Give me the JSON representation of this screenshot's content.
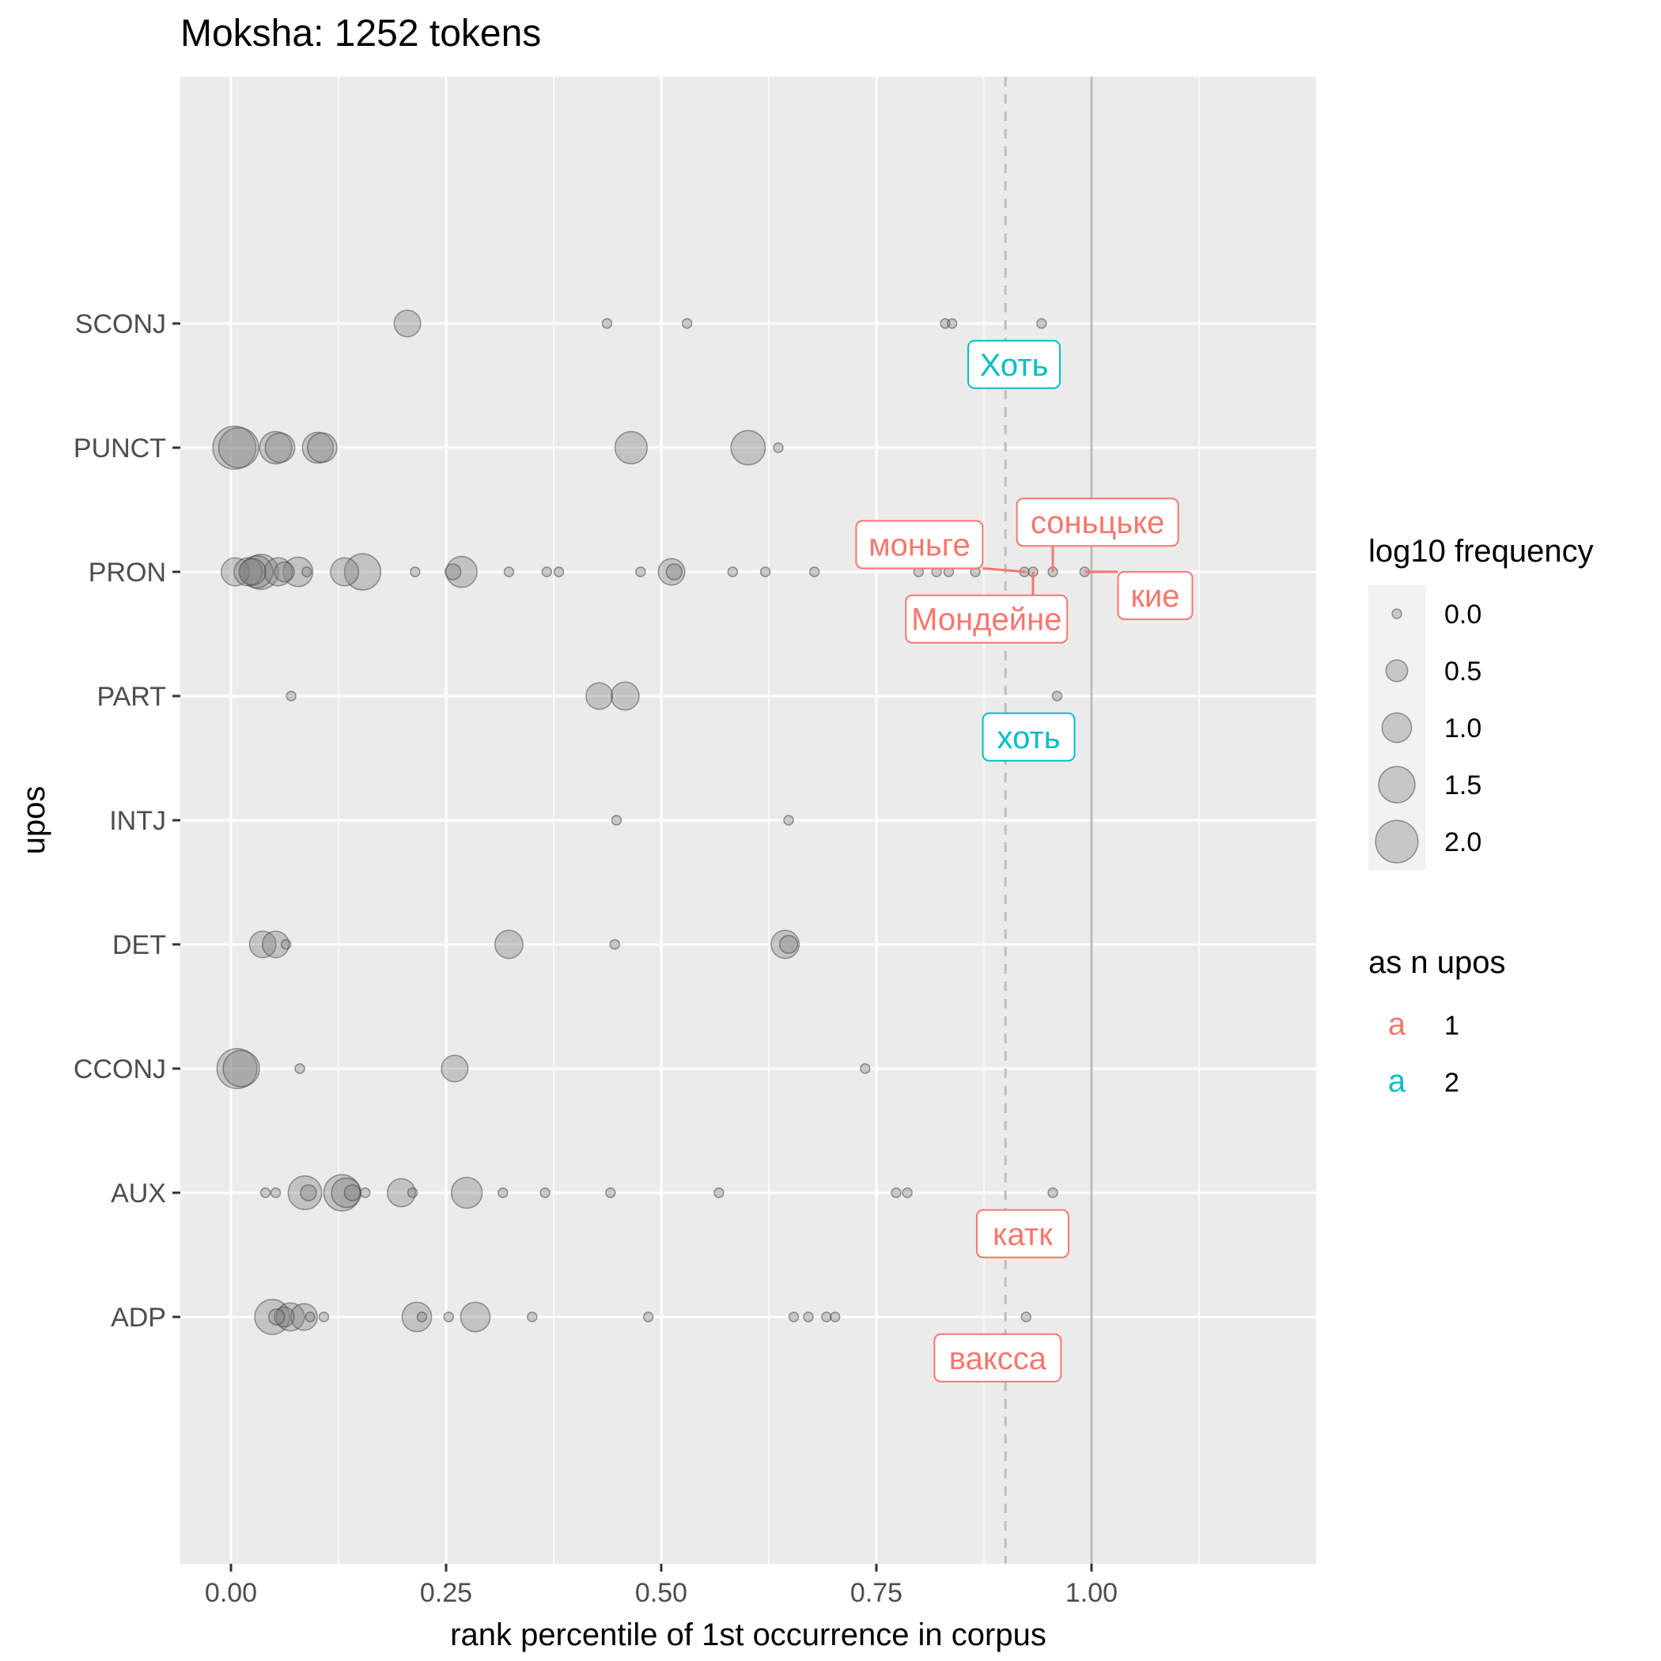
{
  "chart_data": {
    "type": "scatter",
    "title": "Moksha: 1252 tokens",
    "xlabel": "rank percentile of 1st occurrence in corpus",
    "ylabel": "upos",
    "xlim": [
      -0.06,
      1.26
    ],
    "x_ticks": [
      0.0,
      0.25,
      0.5,
      0.75,
      1.0
    ],
    "x_tick_labels": [
      "0.00",
      "0.25",
      "0.50",
      "0.75",
      "1.00"
    ],
    "x_minor_ticks": [
      0.125,
      0.375,
      0.625,
      0.875,
      1.125
    ],
    "categories": [
      "ADP",
      "AUX",
      "CCONJ",
      "DET",
      "INTJ",
      "PART",
      "PRON",
      "PUNCT",
      "SCONJ"
    ],
    "vlines": [
      {
        "x": 0.9,
        "style": "dashed"
      },
      {
        "x": 1.0,
        "style": "solid"
      }
    ],
    "points": [
      {
        "cat": "SCONJ",
        "x": 0.205,
        "f": 0.8
      },
      {
        "cat": "SCONJ",
        "x": 0.437,
        "f": 0
      },
      {
        "cat": "SCONJ",
        "x": 0.53,
        "f": 0
      },
      {
        "cat": "SCONJ",
        "x": 0.83,
        "f": 0
      },
      {
        "cat": "SCONJ",
        "x": 0.838,
        "f": 0
      },
      {
        "cat": "SCONJ",
        "x": 0.942,
        "f": 0
      },
      {
        "cat": "PUNCT",
        "x": 0.004,
        "f": 2.05
      },
      {
        "cat": "PUNCT",
        "x": 0.009,
        "f": 1.8
      },
      {
        "cat": "PUNCT",
        "x": 0.052,
        "f": 1.2
      },
      {
        "cat": "PUNCT",
        "x": 0.057,
        "f": 1.0
      },
      {
        "cat": "PUNCT",
        "x": 0.101,
        "f": 1.1
      },
      {
        "cat": "PUNCT",
        "x": 0.106,
        "f": 1.0
      },
      {
        "cat": "PUNCT",
        "x": 0.465,
        "f": 1.2
      },
      {
        "cat": "PUNCT",
        "x": 0.601,
        "f": 1.35
      },
      {
        "cat": "PUNCT",
        "x": 0.636,
        "f": 0
      },
      {
        "cat": "PRON",
        "x": 0.005,
        "f": 0.9
      },
      {
        "cat": "PRON",
        "x": 0.02,
        "f": 0.9
      },
      {
        "cat": "PRON",
        "x": 0.025,
        "f": 0.8
      },
      {
        "cat": "PRON",
        "x": 0.03,
        "f": 1.2
      },
      {
        "cat": "PRON",
        "x": 0.035,
        "f": 1.4
      },
      {
        "cat": "PRON",
        "x": 0.055,
        "f": 0.9
      },
      {
        "cat": "PRON",
        "x": 0.062,
        "f": 0.4
      },
      {
        "cat": "PRON",
        "x": 0.078,
        "f": 1.0
      },
      {
        "cat": "PRON",
        "x": 0.088,
        "f": 0
      },
      {
        "cat": "PRON",
        "x": 0.132,
        "f": 0.9
      },
      {
        "cat": "PRON",
        "x": 0.153,
        "f": 1.5
      },
      {
        "cat": "PRON",
        "x": 0.214,
        "f": 0
      },
      {
        "cat": "PRON",
        "x": 0.258,
        "f": 0.2
      },
      {
        "cat": "PRON",
        "x": 0.268,
        "f": 1.1
      },
      {
        "cat": "PRON",
        "x": 0.323,
        "f": 0
      },
      {
        "cat": "PRON",
        "x": 0.367,
        "f": 0
      },
      {
        "cat": "PRON",
        "x": 0.381,
        "f": 0
      },
      {
        "cat": "PRON",
        "x": 0.476,
        "f": 0
      },
      {
        "cat": "PRON",
        "x": 0.512,
        "f": 0.8
      },
      {
        "cat": "PRON",
        "x": 0.515,
        "f": 0.2
      },
      {
        "cat": "PRON",
        "x": 0.583,
        "f": 0
      },
      {
        "cat": "PRON",
        "x": 0.621,
        "f": 0
      },
      {
        "cat": "PRON",
        "x": 0.678,
        "f": 0
      },
      {
        "cat": "PRON",
        "x": 0.799,
        "f": 0
      },
      {
        "cat": "PRON",
        "x": 0.82,
        "f": 0
      },
      {
        "cat": "PRON",
        "x": 0.834,
        "f": 0
      },
      {
        "cat": "PRON",
        "x": 0.865,
        "f": 0
      },
      {
        "cat": "PRON",
        "x": 0.922,
        "f": 0
      },
      {
        "cat": "PRON",
        "x": 0.932,
        "f": 0
      },
      {
        "cat": "PRON",
        "x": 0.955,
        "f": 0
      },
      {
        "cat": "PRON",
        "x": 0.992,
        "f": 0
      },
      {
        "cat": "PART",
        "x": 0.07,
        "f": 0
      },
      {
        "cat": "PART",
        "x": 0.428,
        "f": 0.8
      },
      {
        "cat": "PART",
        "x": 0.458,
        "f": 0.9
      },
      {
        "cat": "PART",
        "x": 0.96,
        "f": 0
      },
      {
        "cat": "INTJ",
        "x": 0.448,
        "f": 0
      },
      {
        "cat": "INTJ",
        "x": 0.648,
        "f": 0
      },
      {
        "cat": "DET",
        "x": 0.037,
        "f": 0.8
      },
      {
        "cat": "DET",
        "x": 0.052,
        "f": 0.8
      },
      {
        "cat": "DET",
        "x": 0.064,
        "f": 0
      },
      {
        "cat": "DET",
        "x": 0.323,
        "f": 0.9
      },
      {
        "cat": "DET",
        "x": 0.446,
        "f": 0
      },
      {
        "cat": "DET",
        "x": 0.644,
        "f": 0.9
      },
      {
        "cat": "DET",
        "x": 0.648,
        "f": 0.3
      },
      {
        "cat": "CCONJ",
        "x": 0.007,
        "f": 1.8
      },
      {
        "cat": "CCONJ",
        "x": 0.012,
        "f": 1.5
      },
      {
        "cat": "CCONJ",
        "x": 0.08,
        "f": 0
      },
      {
        "cat": "CCONJ",
        "x": 0.26,
        "f": 0.8
      },
      {
        "cat": "CCONJ",
        "x": 0.737,
        "f": 0
      },
      {
        "cat": "AUX",
        "x": 0.04,
        "f": 0
      },
      {
        "cat": "AUX",
        "x": 0.052,
        "f": 0
      },
      {
        "cat": "AUX",
        "x": 0.086,
        "f": 1.3
      },
      {
        "cat": "AUX",
        "x": 0.09,
        "f": 0.2
      },
      {
        "cat": "AUX",
        "x": 0.129,
        "f": 1.5
      },
      {
        "cat": "AUX",
        "x": 0.134,
        "f": 1.0
      },
      {
        "cat": "AUX",
        "x": 0.141,
        "f": 0.2
      },
      {
        "cat": "AUX",
        "x": 0.156,
        "f": 0
      },
      {
        "cat": "AUX",
        "x": 0.198,
        "f": 0.9
      },
      {
        "cat": "AUX",
        "x": 0.211,
        "f": 0
      },
      {
        "cat": "AUX",
        "x": 0.274,
        "f": 1.1
      },
      {
        "cat": "AUX",
        "x": 0.316,
        "f": 0
      },
      {
        "cat": "AUX",
        "x": 0.365,
        "f": 0
      },
      {
        "cat": "AUX",
        "x": 0.441,
        "f": 0
      },
      {
        "cat": "AUX",
        "x": 0.567,
        "f": 0
      },
      {
        "cat": "AUX",
        "x": 0.773,
        "f": 0
      },
      {
        "cat": "AUX",
        "x": 0.786,
        "f": 0
      },
      {
        "cat": "AUX",
        "x": 0.955,
        "f": 0
      },
      {
        "cat": "ADP",
        "x": 0.048,
        "f": 1.4
      },
      {
        "cat": "ADP",
        "x": 0.053,
        "f": 0.2
      },
      {
        "cat": "ADP",
        "x": 0.062,
        "f": 0.4
      },
      {
        "cat": "ADP",
        "x": 0.069,
        "f": 0.9
      },
      {
        "cat": "ADP",
        "x": 0.085,
        "f": 0.8
      },
      {
        "cat": "ADP",
        "x": 0.092,
        "f": 0
      },
      {
        "cat": "ADP",
        "x": 0.108,
        "f": 0
      },
      {
        "cat": "ADP",
        "x": 0.216,
        "f": 1.0
      },
      {
        "cat": "ADP",
        "x": 0.222,
        "f": 0
      },
      {
        "cat": "ADP",
        "x": 0.253,
        "f": 0
      },
      {
        "cat": "ADP",
        "x": 0.284,
        "f": 1.0
      },
      {
        "cat": "ADP",
        "x": 0.35,
        "f": 0
      },
      {
        "cat": "ADP",
        "x": 0.485,
        "f": 0
      },
      {
        "cat": "ADP",
        "x": 0.654,
        "f": 0
      },
      {
        "cat": "ADP",
        "x": 0.671,
        "f": 0
      },
      {
        "cat": "ADP",
        "x": 0.692,
        "f": 0
      },
      {
        "cat": "ADP",
        "x": 0.702,
        "f": 0
      },
      {
        "cat": "ADP",
        "x": 0.924,
        "f": 0
      }
    ],
    "labels": [
      {
        "text": "Хоть",
        "group": 2,
        "cat": "SCONJ",
        "x": 0.91,
        "offset": -0.33
      },
      {
        "text": "моньге",
        "group": 1,
        "cat": "PRON",
        "x": 0.8,
        "offset": 0.22,
        "target_x": 0.924
      },
      {
        "text": "соньцьке",
        "group": 1,
        "cat": "PRON",
        "x": 1.007,
        "offset": 0.4,
        "target_x": 0.955
      },
      {
        "text": "кие",
        "group": 1,
        "cat": "PRON",
        "x": 1.074,
        "offset": -0.19,
        "target_x": 0.992
      },
      {
        "text": "Мондейне",
        "group": 1,
        "cat": "PRON",
        "x": 0.878,
        "offset": -0.38,
        "target_x": 0.932
      },
      {
        "text": "хоть",
        "group": 2,
        "cat": "PART",
        "x": 0.927,
        "offset": -0.33
      },
      {
        "text": "катк",
        "group": 1,
        "cat": "AUX",
        "x": 0.92,
        "offset": -0.33
      },
      {
        "text": "вакссa",
        "group": 1,
        "cat": "ADP",
        "x": 0.891,
        "offset": -0.33
      }
    ],
    "legend_size": {
      "title": "log10 frequency",
      "values": [
        0.0,
        0.5,
        1.0,
        1.5,
        2.0
      ],
      "labels": [
        "0.0",
        "0.5",
        "1.0",
        "1.5",
        "2.0"
      ]
    },
    "legend_color": {
      "title": "as n upos",
      "glyph": "a",
      "entries": [
        {
          "label": "1",
          "color": "#F8766D"
        },
        {
          "label": "2",
          "color": "#00BFC4"
        }
      ]
    },
    "legend_position": "right"
  }
}
